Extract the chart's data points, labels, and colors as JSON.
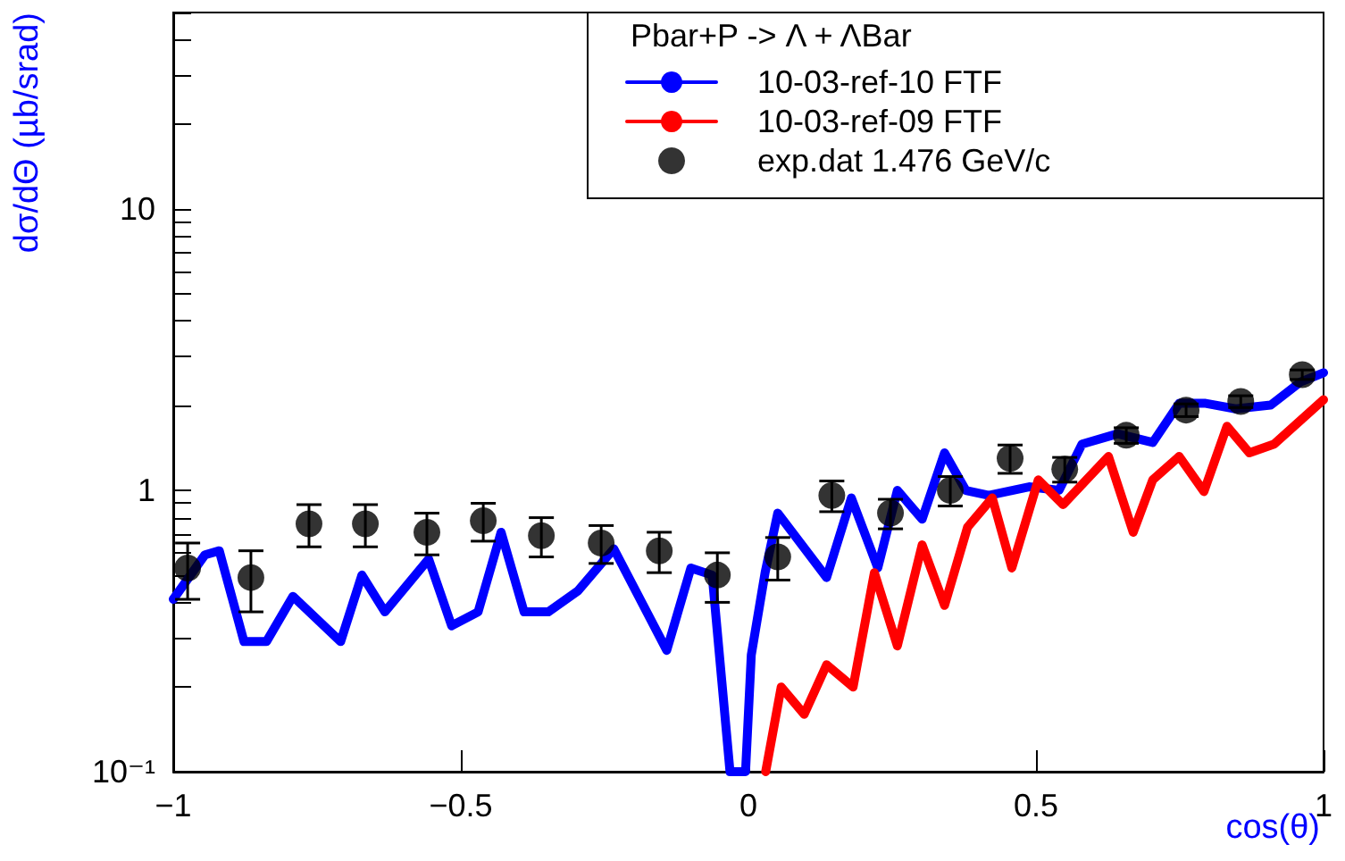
{
  "chart_data": {
    "type": "line",
    "xlabel": "cos(θ)",
    "ylabel": "dσ/dΘ (µb/srad)",
    "legend_title": "Pbar+P -> Λ + ΛBar",
    "legend": "top right",
    "grid": false,
    "log": "y",
    "xlim": [
      -1,
      1
    ],
    "xticks": [
      {
        "value": -1,
        "label": "−1"
      },
      {
        "value": -0.5,
        "label": "−0.5"
      },
      0,
      0.5,
      1
    ],
    "ylim": [
      0.1,
      50
    ],
    "yticks": [
      {
        "value": 0.1,
        "label": "10⁻¹"
      },
      {
        "value": 0.2,
        "label": null
      },
      {
        "value": 0.3,
        "label": null
      },
      {
        "value": 0.4,
        "label": null
      },
      {
        "value": 0.5,
        "label": null
      },
      {
        "value": 0.6,
        "label": null
      },
      {
        "value": 0.7,
        "label": null
      },
      {
        "value": 0.8,
        "label": null
      },
      {
        "value": 0.9,
        "label": null
      },
      1,
      {
        "value": 2,
        "label": null
      },
      {
        "value": 3,
        "label": null
      },
      {
        "value": 4,
        "label": null
      },
      {
        "value": 5,
        "label": null
      },
      {
        "value": 6,
        "label": null
      },
      {
        "value": 7,
        "label": null
      },
      {
        "value": 8,
        "label": null
      },
      {
        "value": 9,
        "label": null
      },
      10,
      {
        "value": 20,
        "label": null
      },
      {
        "value": 30,
        "label": null
      },
      {
        "value": 40,
        "label": null
      },
      {
        "value": 50,
        "label": null
      }
    ],
    "series": [
      {
        "name": "10-03-ref-10 FTF",
        "color": "#0000ff",
        "marker": "none",
        "line_style": "solid",
        "x": [
          -1.0,
          -0.945,
          -0.92,
          -0.877,
          -0.838,
          -0.792,
          -0.709,
          -0.672,
          -0.632,
          -0.556,
          -0.516,
          -0.47,
          -0.43,
          -0.39,
          -0.348,
          -0.296,
          -0.234,
          -0.142,
          -0.1,
          -0.063,
          -0.032,
          -0.005,
          0.005,
          0.029,
          0.051,
          0.136,
          0.179,
          0.225,
          0.259,
          0.302,
          0.341,
          0.378,
          0.418,
          0.488,
          0.54,
          0.58,
          0.642,
          0.703,
          0.749,
          0.795,
          0.847,
          0.908,
          0.96,
          1.0
        ],
        "values": [
          0.41,
          0.59,
          0.61,
          0.29,
          0.29,
          0.42,
          0.29,
          0.5,
          0.37,
          0.57,
          0.33,
          0.37,
          0.71,
          0.37,
          0.37,
          0.44,
          0.62,
          0.27,
          0.53,
          0.5,
          0.1,
          0.1,
          0.26,
          0.51,
          0.83,
          0.49,
          0.94,
          0.53,
          1.0,
          0.79,
          1.36,
          1.0,
          0.96,
          1.03,
          1.0,
          1.46,
          1.59,
          1.48,
          2.04,
          2.04,
          1.95,
          2.01,
          2.43,
          2.62
        ]
      },
      {
        "name": "10-03-ref-09 FTF",
        "color": "#ff0000",
        "marker": "none",
        "line_style": "solid",
        "x": [
          0.03,
          0.057,
          0.097,
          0.136,
          0.182,
          0.219,
          0.259,
          0.302,
          0.341,
          0.381,
          0.424,
          0.458,
          0.504,
          0.547,
          0.626,
          0.669,
          0.703,
          0.749,
          0.792,
          0.832,
          0.871,
          0.914,
          1.0
        ],
        "values": [
          0.1,
          0.2,
          0.16,
          0.24,
          0.2,
          0.51,
          0.28,
          0.64,
          0.39,
          0.74,
          0.94,
          0.53,
          1.09,
          0.89,
          1.32,
          0.71,
          1.09,
          1.32,
          0.99,
          1.69,
          1.36,
          1.46,
          2.1
        ]
      },
      {
        "name": "exp.dat 1.476 GeV/c",
        "type": "scatter",
        "color": "#000000",
        "marker": "circle",
        "x": [
          -0.975,
          -0.865,
          -0.764,
          -0.666,
          -0.559,
          -0.461,
          -0.36,
          -0.256,
          -0.155,
          -0.054,
          0.051,
          0.145,
          0.247,
          0.351,
          0.455,
          0.55,
          0.657,
          0.761,
          0.856,
          0.963
        ],
        "values": [
          0.53,
          0.49,
          0.76,
          0.76,
          0.71,
          0.78,
          0.69,
          0.65,
          0.61,
          0.5,
          0.58,
          0.96,
          0.83,
          1.0,
          1.3,
          1.19,
          1.57,
          1.93,
          2.07,
          2.58
        ],
        "errors": [
          0.12,
          0.12,
          0.13,
          0.13,
          0.12,
          0.12,
          0.11,
          0.1,
          0.1,
          0.1,
          0.1,
          0.12,
          0.1,
          0.12,
          0.15,
          0.12,
          0.1,
          0.1,
          0.1,
          0.1
        ]
      }
    ]
  }
}
